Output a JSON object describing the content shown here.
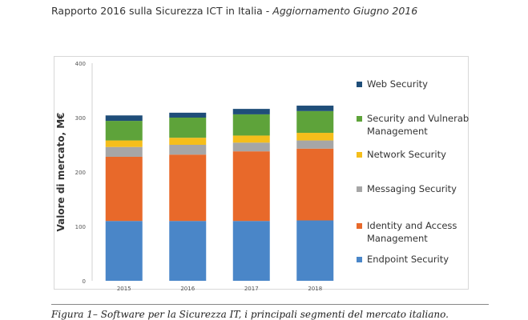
{
  "header": {
    "title_plain": "Rapporto 2016 sulla Sicurezza ICT in Italia - ",
    "title_italic": "Aggiornamento Giugno 2016"
  },
  "chart_data": {
    "type": "bar",
    "stacked": true,
    "categories": [
      "2015",
      "2016",
      "2017",
      "2018"
    ],
    "ylabel": "Valore di mercato, M€",
    "xlabel": "",
    "ylim": [
      0,
      400
    ],
    "yticks": [
      0,
      100,
      200,
      300,
      400
    ],
    "grid": false,
    "legend_position": "right",
    "series": [
      {
        "name": "Endpoint Security",
        "color": "#4a86c8",
        "values": [
          110,
          110,
          110,
          111
        ]
      },
      {
        "name": "Identity and Access Management",
        "color": "#e8692a",
        "values": [
          118,
          122,
          128,
          132
        ]
      },
      {
        "name": "Messaging Security",
        "color": "#a6a6a6",
        "values": [
          18,
          18,
          16,
          15
        ]
      },
      {
        "name": "Network Security",
        "color": "#f5be1b",
        "values": [
          12,
          13,
          13,
          14
        ]
      },
      {
        "name": "Security and Vulnerability Management",
        "color": "#5ea33a",
        "values": [
          36,
          37,
          39,
          40
        ]
      },
      {
        "name": "Web Security",
        "color": "#1f4e79",
        "values": [
          10,
          9,
          10,
          10
        ]
      }
    ],
    "legend_order": [
      5,
      4,
      3,
      2,
      1,
      0
    ],
    "legend_labels": [
      [
        "Web Security"
      ],
      [
        "Security and Vulnerability",
        "Management"
      ],
      [
        "Network Security"
      ],
      [
        "Messaging Security"
      ],
      [
        "Identity and Access",
        "Management"
      ],
      [
        "Endpoint Security"
      ]
    ]
  },
  "caption": "Figura 1– Software per la Sicurezza IT, i principali segmenti del mercato italiano."
}
